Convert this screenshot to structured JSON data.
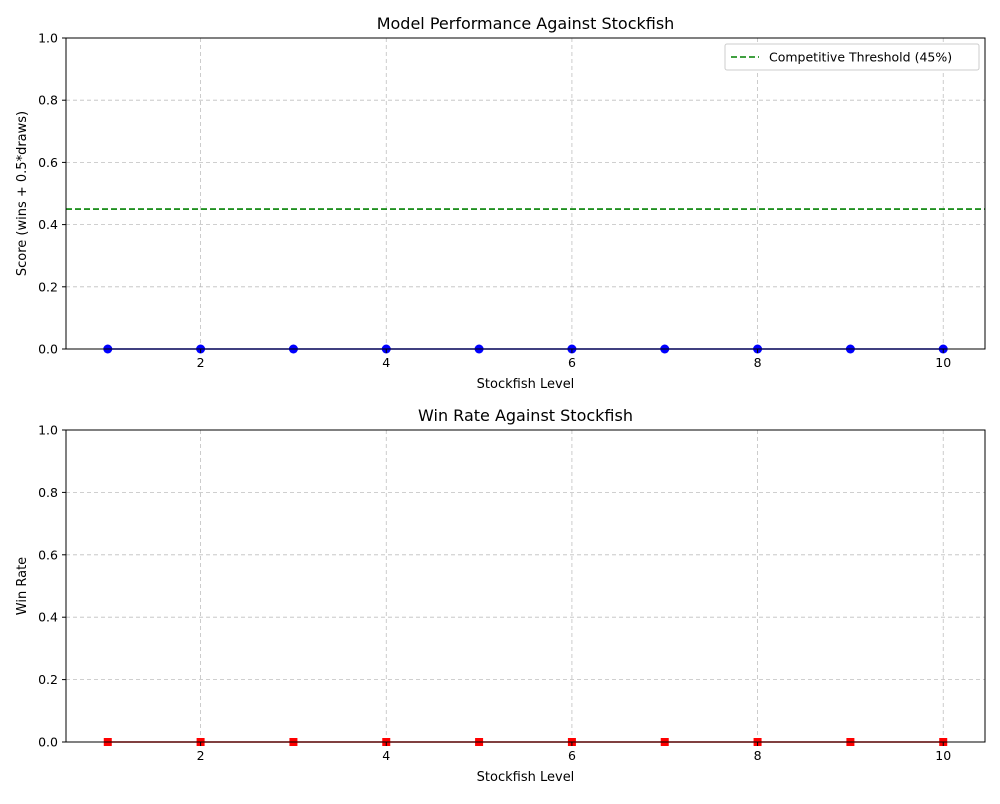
{
  "chart_data": [
    {
      "type": "line",
      "title": "Model Performance Against Stockfish",
      "xlabel": "Stockfish Level",
      "ylabel": "Score (wins + 0.5*draws)",
      "xlim": [
        0.55,
        10.45
      ],
      "ylim": [
        0,
        1
      ],
      "xticks": [
        2,
        4,
        6,
        8,
        10
      ],
      "xtick_labels": [
        "2",
        "4",
        "6",
        "8",
        "10"
      ],
      "yticks": [
        0,
        0.2,
        0.4,
        0.6,
        0.8,
        1.0
      ],
      "ytick_labels": [
        "0.0",
        "0.2",
        "0.4",
        "0.6",
        "0.8",
        "1.0"
      ],
      "grid": true,
      "legend_position": "top-right",
      "series": [
        {
          "x": [
            1,
            2,
            3,
            4,
            5,
            6,
            7,
            8,
            9,
            10
          ],
          "y": [
            0,
            0,
            0,
            0,
            0,
            0,
            0,
            0,
            0,
            0
          ],
          "color": "#0000ff",
          "marker": "circle"
        }
      ],
      "reference_lines": [
        {
          "y": 0.45,
          "label": "Competitive Threshold (45%)",
          "color": "#008000",
          "style": "dashed"
        }
      ]
    },
    {
      "type": "line",
      "title": "Win Rate Against Stockfish",
      "xlabel": "Stockfish Level",
      "ylabel": "Win Rate",
      "xlim": [
        0.55,
        10.45
      ],
      "ylim": [
        0,
        1
      ],
      "xticks": [
        2,
        4,
        6,
        8,
        10
      ],
      "xtick_labels": [
        "2",
        "4",
        "6",
        "8",
        "10"
      ],
      "yticks": [
        0,
        0.2,
        0.4,
        0.6,
        0.8,
        1.0
      ],
      "ytick_labels": [
        "0.0",
        "0.2",
        "0.4",
        "0.6",
        "0.8",
        "1.0"
      ],
      "grid": true,
      "series": [
        {
          "x": [
            1,
            2,
            3,
            4,
            5,
            6,
            7,
            8,
            9,
            10
          ],
          "y": [
            0,
            0,
            0,
            0,
            0,
            0,
            0,
            0,
            0,
            0
          ],
          "color": "#ff0000",
          "marker": "square"
        }
      ],
      "reference_lines": []
    }
  ]
}
